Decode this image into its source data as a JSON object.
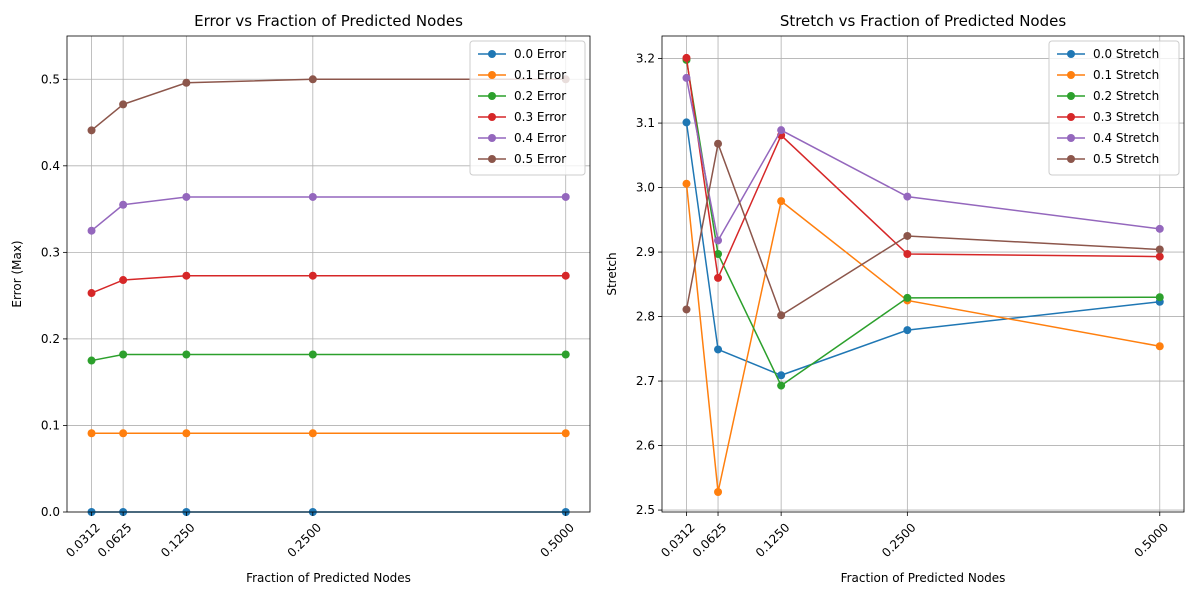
{
  "chart_data": [
    {
      "type": "line",
      "title": "Error vs Fraction of Predicted Nodes",
      "xlabel": "Fraction of Predicted Nodes",
      "ylabel": "Error (Max)",
      "x": [
        0.03125,
        0.0625,
        0.125,
        0.25,
        0.5
      ],
      "xticklabels": [
        "0.0312",
        "0.0625",
        "0.1250",
        "0.2500",
        "0.5000"
      ],
      "xlim": [
        0.007,
        0.524
      ],
      "ylim": [
        0,
        0.55
      ],
      "yticks": [
        0.0,
        0.1,
        0.2,
        0.3,
        0.4,
        0.5
      ],
      "yticklabels": [
        "0.0",
        "0.1",
        "0.2",
        "0.3",
        "0.4",
        "0.5"
      ],
      "grid": true,
      "legend_position": "top-right",
      "series": [
        {
          "name": "0.0 Error",
          "color": "#1f77b4",
          "values": [
            0.0,
            0.0,
            0.0,
            0.0,
            0.0
          ]
        },
        {
          "name": "0.1 Error",
          "color": "#ff7f0e",
          "values": [
            0.091,
            0.091,
            0.091,
            0.091,
            0.091
          ]
        },
        {
          "name": "0.2 Error",
          "color": "#2ca02c",
          "values": [
            0.175,
            0.182,
            0.182,
            0.182,
            0.182
          ]
        },
        {
          "name": "0.3 Error",
          "color": "#d62728",
          "values": [
            0.253,
            0.268,
            0.273,
            0.273,
            0.273
          ]
        },
        {
          "name": "0.4 Error",
          "color": "#9467bd",
          "values": [
            0.325,
            0.355,
            0.364,
            0.364,
            0.364
          ]
        },
        {
          "name": "0.5 Error",
          "color": "#8c564b",
          "values": [
            0.441,
            0.471,
            0.496,
            0.5,
            0.5
          ]
        }
      ]
    },
    {
      "type": "line",
      "title": "Stretch vs Fraction of Predicted Nodes",
      "xlabel": "Fraction of Predicted Nodes",
      "ylabel": "Stretch",
      "x": [
        0.03125,
        0.0625,
        0.125,
        0.25,
        0.5
      ],
      "xticklabels": [
        "0.0312",
        "0.0625",
        "0.1250",
        "0.2500",
        "0.5000"
      ],
      "xlim": [
        0.007,
        0.524
      ],
      "ylim": [
        2.497,
        3.235
      ],
      "yticks": [
        2.5,
        2.6,
        2.7,
        2.8,
        2.9,
        3.0,
        3.1,
        3.2
      ],
      "yticklabels": [
        "2.5",
        "2.6",
        "2.7",
        "2.8",
        "2.9",
        "3.0",
        "3.1",
        "3.2"
      ],
      "grid": true,
      "legend_position": "top-right",
      "series": [
        {
          "name": "0.0 Stretch",
          "color": "#1f77b4",
          "values": [
            3.101,
            2.749,
            2.709,
            2.779,
            2.823
          ]
        },
        {
          "name": "0.1 Stretch",
          "color": "#ff7f0e",
          "values": [
            3.006,
            2.528,
            2.979,
            2.825,
            2.754
          ]
        },
        {
          "name": "0.2 Stretch",
          "color": "#2ca02c",
          "values": [
            3.198,
            2.897,
            2.693,
            2.829,
            2.83
          ]
        },
        {
          "name": "0.3 Stretch",
          "color": "#d62728",
          "values": [
            3.201,
            2.86,
            3.081,
            2.897,
            2.893
          ]
        },
        {
          "name": "0.4 Stretch",
          "color": "#9467bd",
          "values": [
            3.17,
            2.918,
            3.089,
            2.986,
            2.936
          ]
        },
        {
          "name": "0.5 Stretch",
          "color": "#8c564b",
          "values": [
            2.811,
            3.068,
            2.802,
            2.925,
            2.904
          ]
        }
      ]
    }
  ]
}
